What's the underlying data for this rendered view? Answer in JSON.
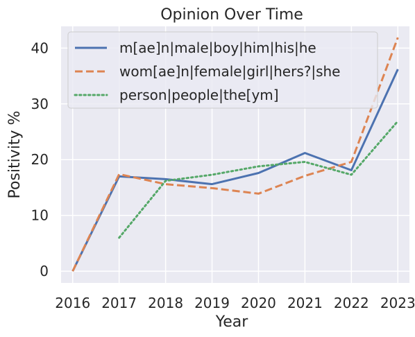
{
  "chart_data": {
    "type": "line",
    "title": "Opinion Over Time",
    "xlabel": "Year",
    "ylabel": "Positivity %",
    "x": [
      2016,
      2017,
      2018,
      2019,
      2020,
      2021,
      2022,
      2023
    ],
    "xlim": [
      2015.75,
      2023.25
    ],
    "ylim": [
      -2.1,
      43.9
    ],
    "yticks": [
      0,
      10,
      20,
      30,
      40
    ],
    "grid": true,
    "legend_position": "top-left",
    "series": [
      {
        "name": "m[ae]n|male|boy|him|his|he",
        "color": "#4c72b0",
        "style": "solid",
        "values": [
          0,
          17.0,
          16.5,
          15.6,
          17.6,
          21.2,
          18.1,
          36.2
        ]
      },
      {
        "name": "wom[ae]n|female|girl|hers?|she",
        "color": "#dd8452",
        "style": "dashed",
        "values": [
          0,
          17.4,
          15.6,
          14.9,
          13.9,
          17.1,
          19.6,
          41.9
        ]
      },
      {
        "name": "person|people|the[ym]",
        "color": "#55a868",
        "style": "dotted",
        "values": [
          null,
          6.0,
          16.2,
          17.3,
          18.8,
          19.6,
          17.3,
          26.9
        ]
      }
    ]
  }
}
